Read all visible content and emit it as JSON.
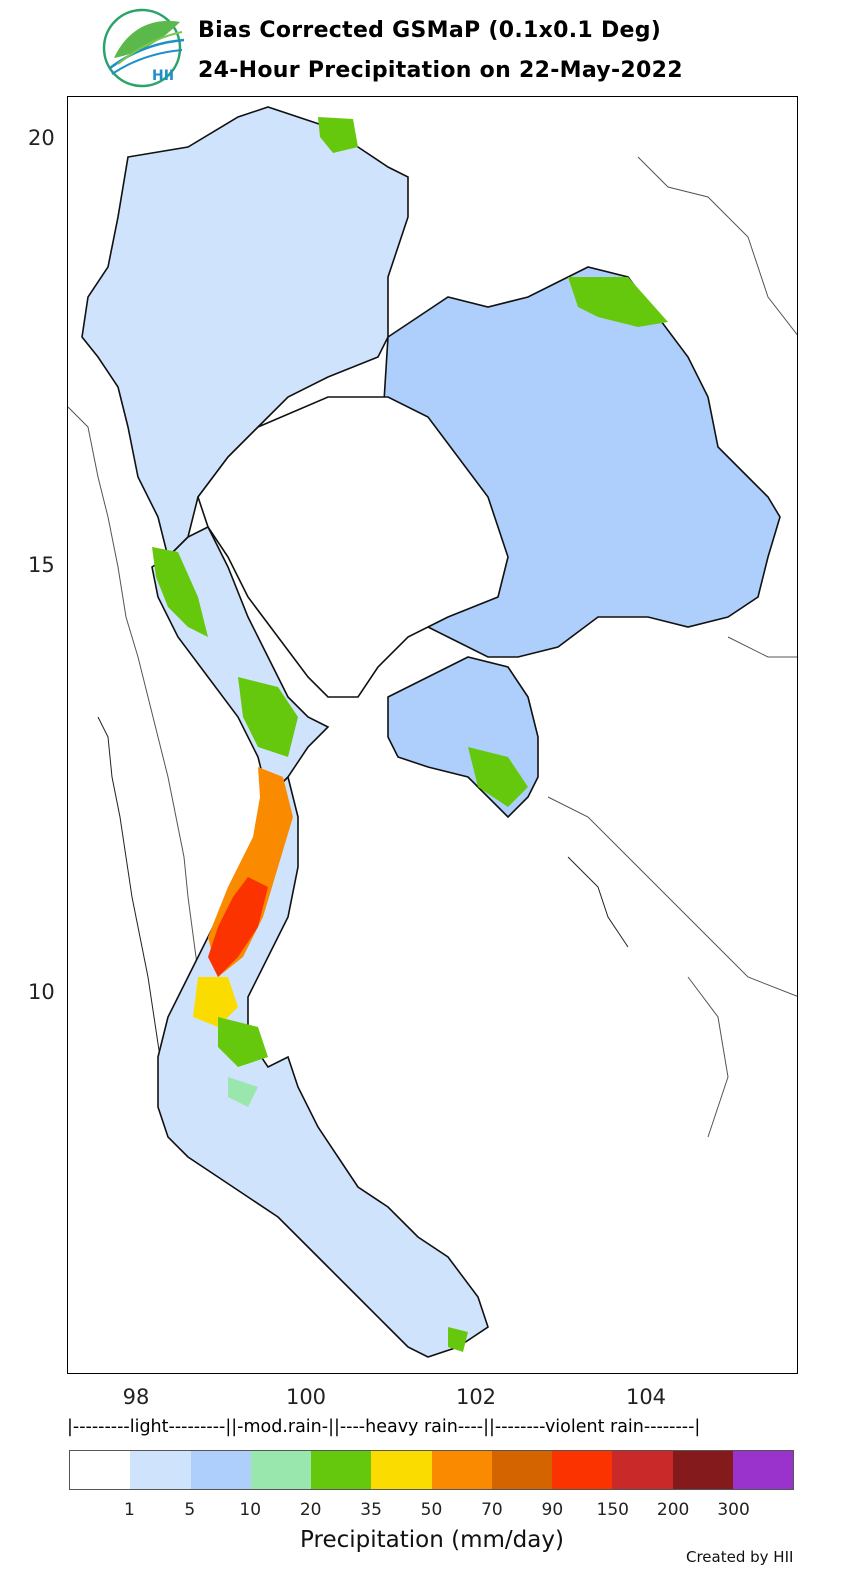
{
  "header": {
    "title_line1": "Bias Corrected GSMaP (0.1x0.1 Deg)",
    "title_line2": "24-Hour Precipitation on 22-May-2022",
    "logo_text": "HII"
  },
  "axes": {
    "y_ticks": [
      "20",
      "15",
      "10"
    ],
    "x_ticks": [
      "98",
      "100",
      "102",
      "104"
    ]
  },
  "legend": {
    "class_text": "|---------light---------||-mod.rain-||----heavy rain----||--------violent rain--------|",
    "bins": [
      "1",
      "5",
      "10",
      "20",
      "35",
      "50",
      "70",
      "90",
      "150",
      "200",
      "300"
    ],
    "colors": [
      "#ffffff",
      "#cfe3fd",
      "#aecffb",
      "#99e7ad",
      "#66c80d",
      "#fadc00",
      "#fa8a00",
      "#d36400",
      "#fa3300",
      "#c92a29",
      "#851a1c",
      "#9933cc"
    ],
    "label": "Precipitation (mm/day)"
  },
  "credit": "Created by HII"
}
